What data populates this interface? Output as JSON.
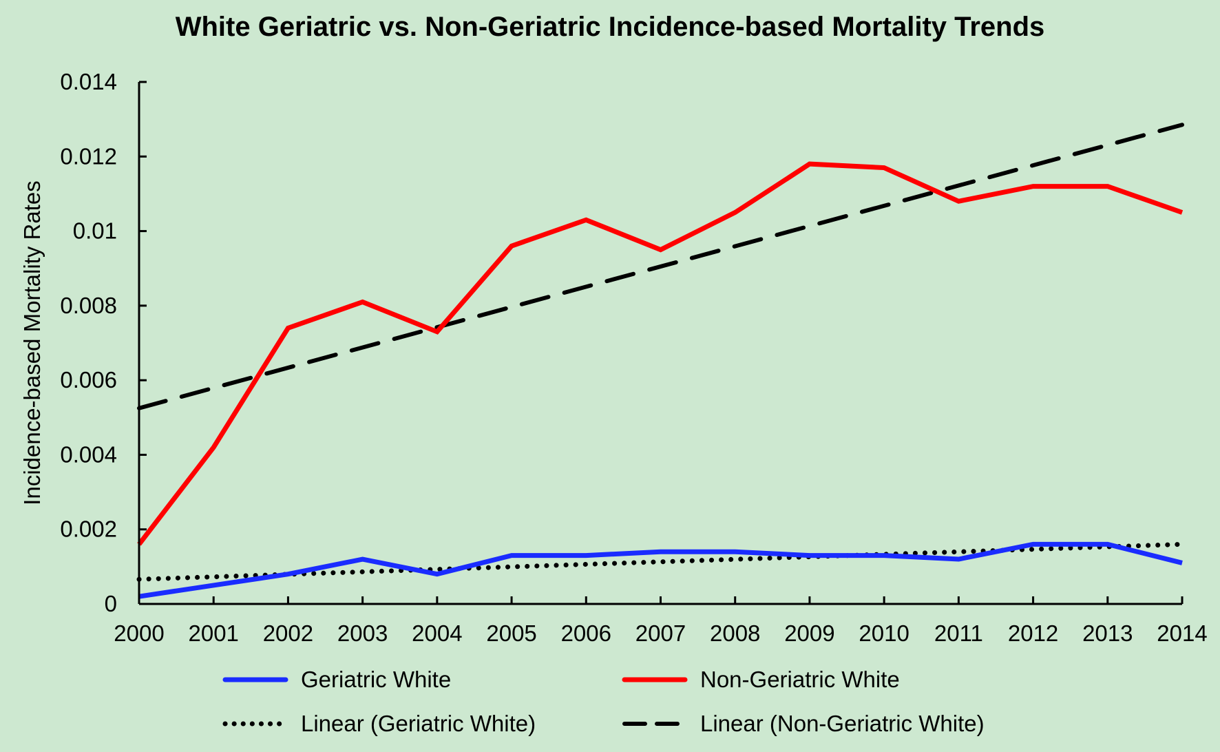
{
  "chart_data": {
    "type": "line",
    "title": "White Geriatric vs. Non-Geriatric Incidence-based Mortality Trends",
    "xlabel": "",
    "ylabel": "Incidence-based Mortality Rates",
    "x": [
      "2000",
      "2001",
      "2002",
      "2003",
      "2004",
      "2005",
      "2006",
      "2007",
      "2008",
      "2009",
      "2010",
      "2011",
      "2012",
      "2013",
      "2014"
    ],
    "ylim": [
      0,
      0.014
    ],
    "yticks": [
      "0",
      "0.002",
      "0.004",
      "0.006",
      "0.008",
      "0.01",
      "0.012",
      "0.014"
    ],
    "ytick_values": [
      0,
      0.002,
      0.004,
      0.006,
      0.008,
      0.01,
      0.012,
      0.014
    ],
    "grid": false,
    "legend_position": "bottom",
    "series": [
      {
        "name": "Geriatric White",
        "color": "#1a2cff",
        "style": "solid",
        "values": [
          0.0002,
          0.0005,
          0.0008,
          0.0012,
          0.0008,
          0.0013,
          0.0013,
          0.0014,
          0.0014,
          0.0013,
          0.0013,
          0.0012,
          0.0016,
          0.0016,
          0.0011
        ]
      },
      {
        "name": "Non-Geriatric White",
        "color": "#ff0000",
        "style": "solid",
        "values": [
          0.0016,
          0.0042,
          0.0074,
          0.0081,
          0.0073,
          0.0096,
          0.0103,
          0.0095,
          0.0105,
          0.0118,
          0.0117,
          0.0108,
          0.0112,
          0.0112,
          0.0105
        ]
      },
      {
        "name": "Linear (Geriatric White)",
        "color": "#000000",
        "style": "dotted",
        "trendline": true,
        "start": 0.00066,
        "end": 0.0016
      },
      {
        "name": "Linear (Non-Geriatric White)",
        "color": "#000000",
        "style": "dashed",
        "trendline": true,
        "start": 0.00525,
        "end": 0.01285
      }
    ]
  }
}
